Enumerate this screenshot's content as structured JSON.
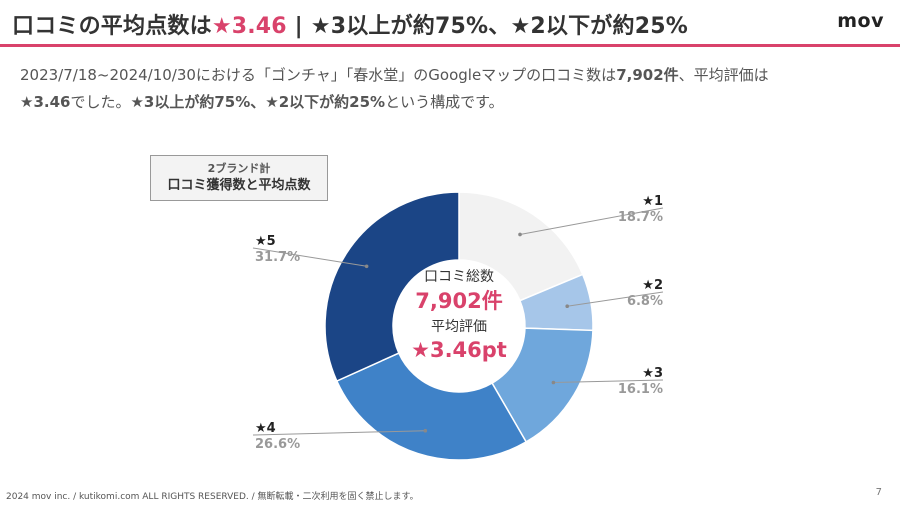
{
  "header": {
    "title_part1": "口コミの平均点数は",
    "title_accent": "★3.46",
    "title_part2": " | ★3以上が約75%、★2以下が約25%",
    "logo": "mov"
  },
  "description": {
    "line1_pre": "2023/7/18~2024/10/30における「ゴンチャ」「春水堂」のGoogleマップの口コミ数は",
    "line1_bold": "7,902件",
    "line1_post": "、平均評価は",
    "line2_bold1": "★3.46",
    "line2_mid": "でした。",
    "line2_bold2": "★3以上が約75%、★2以下が約25%",
    "line2_post": "という構成です。"
  },
  "legend_box": {
    "line1": "2ブランド計",
    "line2": "口コミ獲得数と平均点数"
  },
  "center": {
    "label1": "口コミ総数",
    "value1": "7,902件",
    "label2": "平均評価",
    "value2": "★3.46pt"
  },
  "chart_data": {
    "type": "pie",
    "donut": true,
    "categories": [
      "★1",
      "★2",
      "★3",
      "★4",
      "★5"
    ],
    "values": [
      18.7,
      6.8,
      16.1,
      26.6,
      31.7
    ],
    "value_labels": [
      "18.7%",
      "6.8%",
      "16.1%",
      "26.6%",
      "31.7%"
    ],
    "colors": [
      "#f2f2f2",
      "#a6c6e9",
      "#6fa7dc",
      "#3f82c8",
      "#1b4586"
    ]
  },
  "colors": {
    "accent": "#d9426b",
    "text": "#333333"
  },
  "footer": {
    "copyright": "2024 mov inc. / kutikomi.com ALL RIGHTS RESERVED. / 無断転載・二次利用を固く禁止します。",
    "page": "7"
  }
}
